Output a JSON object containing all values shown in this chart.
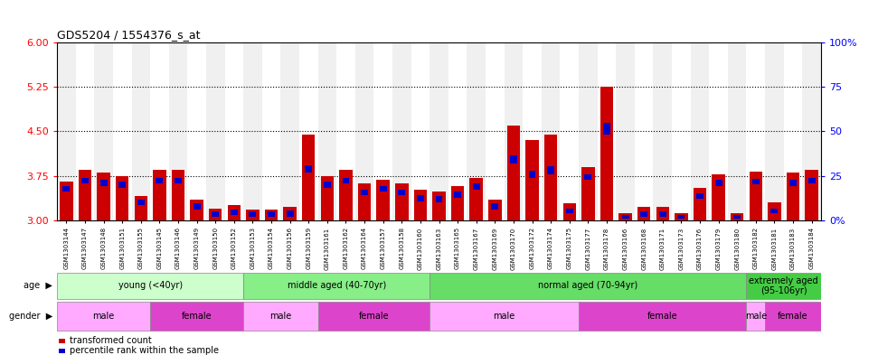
{
  "title": "GDS5204 / 1554376_s_at",
  "samples": [
    "GSM1303144",
    "GSM1303147",
    "GSM1303148",
    "GSM1303151",
    "GSM1303155",
    "GSM1303145",
    "GSM1303146",
    "GSM1303149",
    "GSM1303150",
    "GSM1303152",
    "GSM1303153",
    "GSM1303154",
    "GSM1303156",
    "GSM1303159",
    "GSM1303161",
    "GSM1303162",
    "GSM1303164",
    "GSM1303157",
    "GSM1303158",
    "GSM1303160",
    "GSM1303163",
    "GSM1303165",
    "GSM1303167",
    "GSM1303169",
    "GSM1303170",
    "GSM1303172",
    "GSM1303174",
    "GSM1303175",
    "GSM1303177",
    "GSM1303178",
    "GSM1303166",
    "GSM1303168",
    "GSM1303171",
    "GSM1303173",
    "GSM1303176",
    "GSM1303179",
    "GSM1303180",
    "GSM1303182",
    "GSM1303181",
    "GSM1303183",
    "GSM1303184"
  ],
  "red_values": [
    3.65,
    3.85,
    3.8,
    3.75,
    3.4,
    3.85,
    3.85,
    3.35,
    3.2,
    3.25,
    3.18,
    3.18,
    3.22,
    4.45,
    3.75,
    3.85,
    3.62,
    3.68,
    3.62,
    3.52,
    3.48,
    3.58,
    3.72,
    3.35,
    4.6,
    4.35,
    4.45,
    3.28,
    3.9,
    5.25,
    3.12,
    3.22,
    3.22,
    3.12,
    3.55,
    3.78,
    3.12,
    3.82,
    3.3,
    3.8,
    3.85
  ],
  "blue_values": [
    3.48,
    3.62,
    3.58,
    3.55,
    3.25,
    3.62,
    3.62,
    3.18,
    3.05,
    3.08,
    3.05,
    3.05,
    3.06,
    3.8,
    3.55,
    3.62,
    3.42,
    3.48,
    3.42,
    3.32,
    3.3,
    3.38,
    3.52,
    3.18,
    3.95,
    3.72,
    3.78,
    3.12,
    3.68,
    4.45,
    3.02,
    3.06,
    3.06,
    3.02,
    3.36,
    3.58,
    3.02,
    3.6,
    3.12,
    3.58,
    3.62
  ],
  "blue_heights": [
    0.1,
    0.1,
    0.1,
    0.1,
    0.1,
    0.1,
    0.1,
    0.1,
    0.1,
    0.1,
    0.1,
    0.1,
    0.1,
    0.12,
    0.1,
    0.1,
    0.1,
    0.1,
    0.1,
    0.1,
    0.1,
    0.1,
    0.1,
    0.1,
    0.14,
    0.12,
    0.13,
    0.08,
    0.1,
    0.2,
    0.06,
    0.08,
    0.08,
    0.06,
    0.1,
    0.1,
    0.06,
    0.1,
    0.08,
    0.1,
    0.1
  ],
  "ylim_left": [
    3.0,
    6.0
  ],
  "yticks_left": [
    3.0,
    3.75,
    4.5,
    5.25,
    6.0
  ],
  "ylim_right": [
    0,
    100
  ],
  "yticks_right": [
    0,
    25,
    50,
    75,
    100
  ],
  "ytick_labels_right": [
    "0%",
    "25",
    "50",
    "75",
    "100%"
  ],
  "hlines": [
    3.75,
    4.5,
    5.25
  ],
  "bar_color_red": "#cc0000",
  "bar_color_blue": "#0000cc",
  "bg_colors": [
    "#f0f0f0",
    "#ffffff"
  ],
  "age_groups": [
    {
      "label": "young (<40yr)",
      "start": 0,
      "end": 10,
      "color": "#ccffcc"
    },
    {
      "label": "middle aged (40-70yr)",
      "start": 10,
      "end": 20,
      "color": "#88ee88"
    },
    {
      "label": "normal aged (70-94yr)",
      "start": 20,
      "end": 37,
      "color": "#66dd66"
    },
    {
      "label": "extremely aged\n(95-106yr)",
      "start": 37,
      "end": 41,
      "color": "#44cc44"
    }
  ],
  "gender_groups": [
    {
      "label": "male",
      "start": 0,
      "end": 5,
      "color": "#ffaaff"
    },
    {
      "label": "female",
      "start": 5,
      "end": 10,
      "color": "#dd44cc"
    },
    {
      "label": "male",
      "start": 10,
      "end": 14,
      "color": "#ffaaff"
    },
    {
      "label": "female",
      "start": 14,
      "end": 20,
      "color": "#dd44cc"
    },
    {
      "label": "male",
      "start": 20,
      "end": 28,
      "color": "#ffaaff"
    },
    {
      "label": "female",
      "start": 28,
      "end": 37,
      "color": "#dd44cc"
    },
    {
      "label": "male",
      "start": 37,
      "end": 38,
      "color": "#ffaaff"
    },
    {
      "label": "female",
      "start": 38,
      "end": 41,
      "color": "#dd44cc"
    }
  ],
  "legend_items": [
    {
      "label": "transformed count",
      "color": "#cc0000"
    },
    {
      "label": "percentile rank within the sample",
      "color": "#0000cc"
    }
  ]
}
